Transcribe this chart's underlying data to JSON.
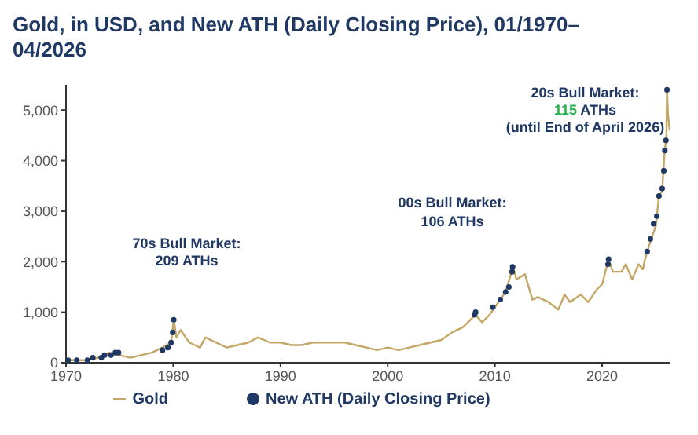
{
  "chart_data": {
    "type": "line",
    "title": "Gold, in USD, and New ATH (Daily Closing Price), 01/1970–04/2026",
    "xlim": [
      1970,
      2026.3
    ],
    "xticks": [
      1970,
      1980,
      1990,
      2000,
      2010,
      2020
    ],
    "ylim": [
      0,
      5500
    ],
    "yticks": [
      0,
      {
        "value": 1000,
        "label": "1,000"
      },
      {
        "value": 2000,
        "label": "2,000"
      },
      {
        "value": 3000,
        "label": "3,000"
      },
      {
        "value": 4000,
        "label": "4,000"
      },
      {
        "value": 5000,
        "label": "5,000"
      }
    ],
    "grid": false,
    "legend": "bottom",
    "series": [
      {
        "name": "Gold",
        "color": "#c4a766",
        "x": [
          1970,
          1971,
          1972,
          1973,
          1974,
          1975,
          1976,
          1977,
          1978,
          1979,
          1979.8,
          1980.05,
          1980.3,
          1980.7,
          1981,
          1981.5,
          1982.5,
          1983,
          1984,
          1985,
          1986,
          1987,
          1987.9,
          1988.5,
          1989,
          1990,
          1991,
          1992,
          1993,
          1994,
          1995,
          1996,
          1997,
          1998,
          1999,
          2000,
          2001,
          2002,
          2003,
          2004,
          2005,
          2006,
          2007,
          2008.2,
          2008.8,
          2009.5,
          2010,
          2011,
          2011.7,
          2012,
          2012.8,
          2013.5,
          2014,
          2015,
          2015.9,
          2016.5,
          2017,
          2018,
          2018.7,
          2019.5,
          2020,
          2020.6,
          2021,
          2021.8,
          2022.2,
          2022.8,
          2023.4,
          2023.8,
          2024,
          2024.5,
          2025,
          2025.3,
          2025.6,
          2025.8,
          2026,
          2026.05,
          2026.15,
          2026.3
        ],
        "values": [
          50,
          50,
          50,
          100,
          200,
          150,
          100,
          150,
          200,
          300,
          400,
          850,
          500,
          650,
          550,
          400,
          300,
          500,
          400,
          300,
          350,
          400,
          500,
          450,
          400,
          400,
          350,
          350,
          400,
          400,
          400,
          400,
          350,
          300,
          250,
          300,
          250,
          300,
          350,
          400,
          450,
          600,
          700,
          950,
          800,
          950,
          1100,
          1400,
          1900,
          1650,
          1750,
          1250,
          1300,
          1200,
          1050,
          1350,
          1200,
          1350,
          1200,
          1450,
          1550,
          2050,
          1800,
          1800,
          1950,
          1650,
          1950,
          1850,
          2050,
          2400,
          2700,
          3300,
          3400,
          4100,
          4500,
          5400,
          4900,
          4600
        ]
      },
      {
        "name": "New ATH (Daily Closing Price)",
        "type": "scatter",
        "color": "#1f3864",
        "marker": "circle",
        "x": [
          1970.2,
          1971,
          1972,
          1972.5,
          1973.3,
          1973.6,
          1974.2,
          1974.6,
          1974.9,
          1979,
          1979.5,
          1979.8,
          1979.95,
          1980.05,
          2008.1,
          2008.2,
          2009.8,
          2010.5,
          2011,
          2011.3,
          2011.6,
          2011.65,
          2020.55,
          2020.6,
          2024.2,
          2024.5,
          2024.8,
          2025.1,
          2025.3,
          2025.6,
          2025.75,
          2025.85,
          2025.95,
          2026.05
        ],
        "values": [
          50,
          50,
          50,
          100,
          100,
          150,
          150,
          200,
          200,
          250,
          300,
          400,
          600,
          850,
          950,
          1000,
          1100,
          1250,
          1400,
          1500,
          1800,
          1900,
          1950,
          2050,
          2200,
          2450,
          2750,
          2900,
          3300,
          3450,
          3800,
          4200,
          4400,
          5400
        ]
      }
    ],
    "annotations": [
      "70s Bull Market:",
      "209 ATHs",
      "00s Bull Market:",
      "106 ATHs",
      "20s Bull Market:",
      "115 ATHs",
      "(until End of April 2026)"
    ]
  }
}
